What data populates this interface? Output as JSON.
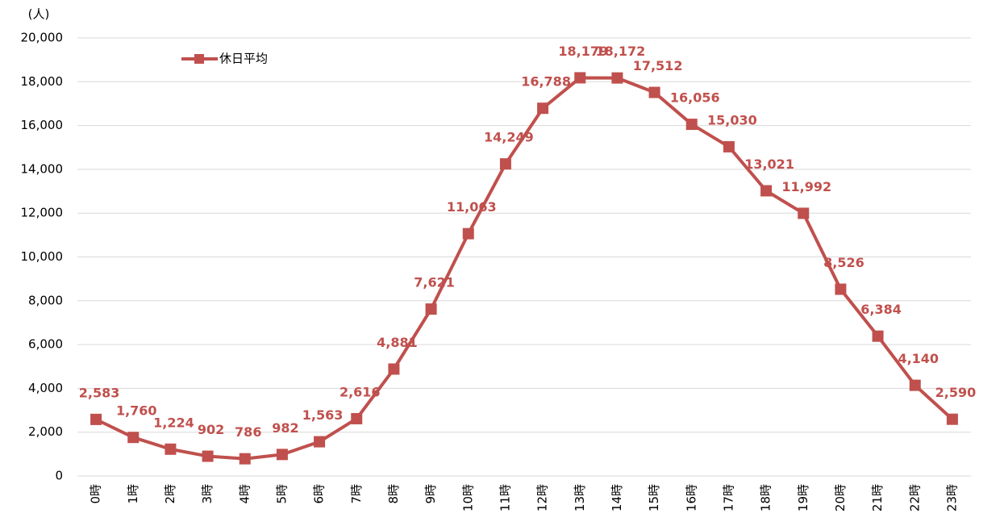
{
  "chart_data": {
    "type": "line",
    "y_axis_label": "(人)",
    "categories": [
      "0時",
      "1時",
      "2時",
      "3時",
      "4時",
      "5時",
      "6時",
      "7時",
      "8時",
      "9時",
      "10時",
      "11時",
      "12時",
      "13時",
      "14時",
      "15時",
      "16時",
      "17時",
      "18時",
      "19時",
      "20時",
      "21時",
      "22時",
      "23時"
    ],
    "series": [
      {
        "name": "休日平均",
        "color": "#c0504d",
        "values": [
          2583,
          1760,
          1224,
          902,
          786,
          982,
          1563,
          2616,
          4881,
          7621,
          11063,
          14249,
          16788,
          18179,
          18172,
          17512,
          16056,
          15030,
          13021,
          11992,
          8526,
          6384,
          4140,
          2590
        ],
        "value_labels": [
          "2,583",
          "1,760",
          "1,224",
          "902",
          "786",
          "982",
          "1,563",
          "2,616",
          "4,881",
          "7,621",
          "11,063",
          "14,249",
          "16,788",
          "18,179",
          "18,172",
          "17,512",
          "16,056",
          "15,030",
          "13,021",
          "11,992",
          "8,526",
          "6,384",
          "4,140",
          "2,590"
        ]
      }
    ],
    "ylim": [
      0,
      20000
    ],
    "yticks": [
      0,
      {
        "value": 2000,
        "label": "2,000"
      },
      {
        "value": 4000,
        "label": "4,000"
      },
      {
        "value": 6000,
        "label": "6,000"
      },
      {
        "value": 8000,
        "label": "8,000"
      },
      {
        "value": 10000,
        "label": "10,000"
      },
      {
        "value": 12000,
        "label": "12,000"
      },
      {
        "value": 14000,
        "label": "14,000"
      },
      {
        "value": 16000,
        "label": "16,000"
      },
      {
        "value": 18000,
        "label": "18,000"
      },
      {
        "value": 20000,
        "label": "20,000"
      }
    ],
    "grid": true,
    "legend": "top-left"
  }
}
